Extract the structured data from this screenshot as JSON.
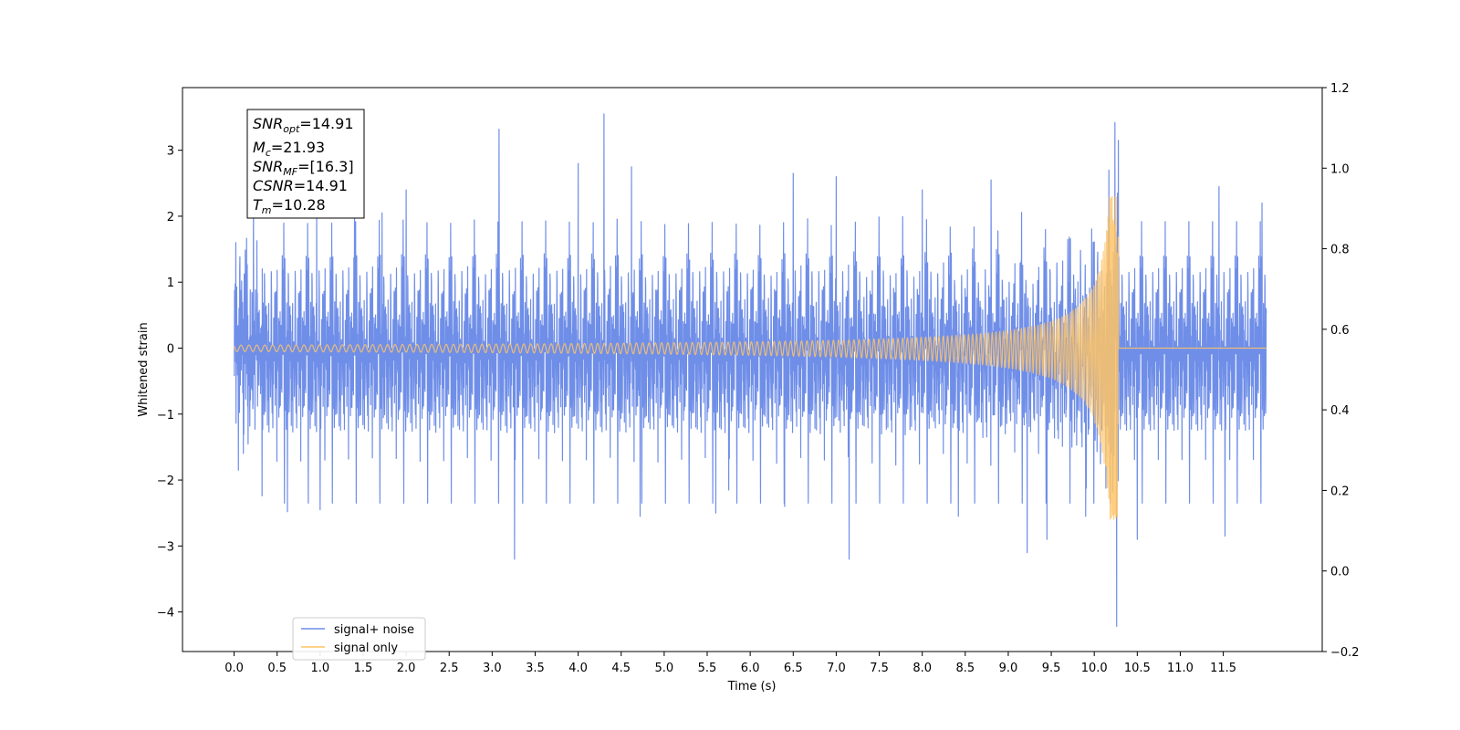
{
  "chart_data": {
    "type": "line",
    "xlabel": "Time (s)",
    "ylabel": "Whitened strain",
    "xlim": [
      -0.6,
      12.65
    ],
    "ylim": [
      -4.6,
      3.95
    ],
    "y2lim": [
      -0.2,
      1.2
    ],
    "x_ticks": [
      "0.0",
      "0.5",
      "1.0",
      "1.5",
      "2.0",
      "2.5",
      "3.0",
      "3.5",
      "4.0",
      "4.5",
      "5.0",
      "5.5",
      "6.0",
      "6.5",
      "7.0",
      "7.5",
      "8.0",
      "8.5",
      "9.0",
      "9.5",
      "10.0",
      "10.5",
      "11.0",
      "11.5"
    ],
    "y_ticks": [
      "3",
      "2",
      "1",
      "0",
      "−1",
      "−2",
      "−3",
      "−4"
    ],
    "y2_ticks": [
      "1.2",
      "1.0",
      "0.8",
      "0.6",
      "0.4",
      "0.2",
      "0.0",
      "−0.2"
    ],
    "legend_position": "lower-left",
    "series": [
      {
        "name": "signal+ noise",
        "color": "#6f8ee8",
        "x_range": [
          0.0,
          12.0
        ],
        "noise_sigma": 0.72,
        "peaks": [
          {
            "x": 0.02,
            "y": 1.6
          },
          {
            "x": 0.05,
            "y": -1.85
          },
          {
            "x": 0.62,
            "y": -2.48
          },
          {
            "x": 0.96,
            "y": 2.05
          },
          {
            "x": 1.0,
            "y": -2.45
          },
          {
            "x": 1.4,
            "y": 2.1
          },
          {
            "x": 1.72,
            "y": 2.05
          },
          {
            "x": 2.0,
            "y": 2.4
          },
          {
            "x": 3.08,
            "y": 3.32
          },
          {
            "x": 3.26,
            "y": -3.2
          },
          {
            "x": 4.0,
            "y": 2.8
          },
          {
            "x": 4.3,
            "y": 3.55
          },
          {
            "x": 4.62,
            "y": 2.75
          },
          {
            "x": 4.72,
            "y": -2.55
          },
          {
            "x": 5.6,
            "y": -2.5
          },
          {
            "x": 5.75,
            "y": -2.15
          },
          {
            "x": 6.4,
            "y": -2.4
          },
          {
            "x": 6.5,
            "y": 2.65
          },
          {
            "x": 7.0,
            "y": 2.6
          },
          {
            "x": 7.15,
            "y": -3.2
          },
          {
            "x": 8.0,
            "y": 2.4
          },
          {
            "x": 8.42,
            "y": -2.55
          },
          {
            "x": 8.8,
            "y": 2.55
          },
          {
            "x": 9.22,
            "y": -3.1
          },
          {
            "x": 9.45,
            "y": -2.9
          },
          {
            "x": 9.9,
            "y": -2.55
          },
          {
            "x": 10.17,
            "y": 2.7
          },
          {
            "x": 10.24,
            "y": 3.42
          },
          {
            "x": 10.26,
            "y": -4.22
          },
          {
            "x": 10.28,
            "y": 3.15
          },
          {
            "x": 10.5,
            "y": -2.9
          },
          {
            "x": 11.45,
            "y": 2.45
          },
          {
            "x": 11.52,
            "y": -2.85
          },
          {
            "x": 11.95,
            "y": 2.2
          }
        ]
      },
      {
        "name": "signal only",
        "color": "#ffc466",
        "x_range": [
          0.0,
          12.0
        ],
        "merger_time": 10.28,
        "peak_amplitude": 2.3,
        "trough_amplitude": -2.6,
        "early_amplitude": 0.02
      }
    ]
  },
  "annotation": {
    "snr_opt_base": "SNR",
    "snr_opt_sub": "opt",
    "snr_opt_val": "=14.91",
    "mc_base": "M",
    "mc_sub": "c",
    "mc_val": "=21.93",
    "snr_mf_base": "SNR",
    "snr_mf_sub": "MF",
    "snr_mf_val": "=[16.3]",
    "csnr_base": "CSNR",
    "csnr_val": "=14.91",
    "tm_base": "T",
    "tm_sub": "m",
    "tm_val": "=10.28"
  }
}
